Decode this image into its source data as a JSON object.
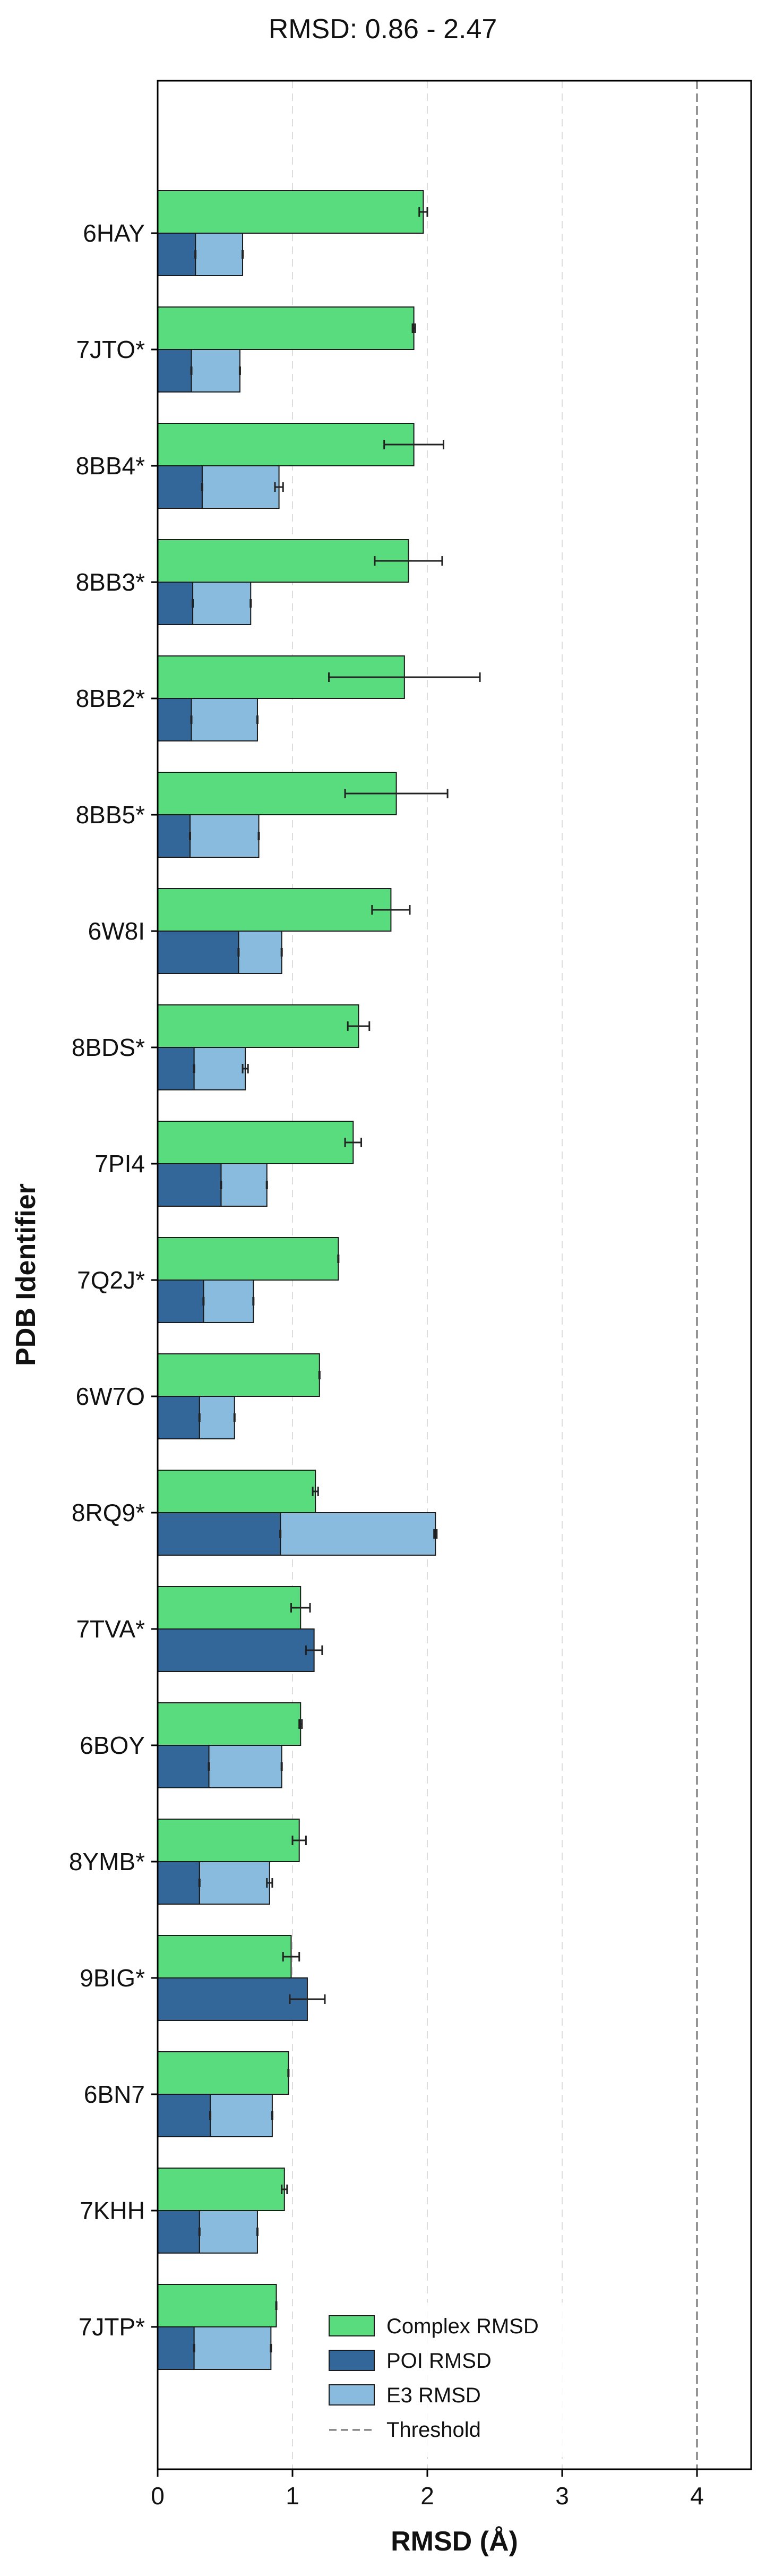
{
  "chart_data": {
    "type": "bar",
    "orientation": "horizontal",
    "title": "RMSD: 0.86 - 2.47",
    "xlabel": "RMSD (Å)",
    "ylabel": "PDB Identifier",
    "xlim": [
      0,
      4.2
    ],
    "xticks": [
      "0",
      "1",
      "2",
      "3",
      "4"
    ],
    "grid": "vertical dashed",
    "legend_position": "bottom-right",
    "threshold": 4.0,
    "categories": [
      "6HAY",
      "7JTO*",
      "8BB4*",
      "8BB3*",
      "8BB2*",
      "8BB5*",
      "6W8I",
      "8BDS*",
      "7PI4",
      "7Q2J*",
      "6W7O",
      "8RQ9*",
      "7TVA*",
      "6BOY",
      "8YMB*",
      "9BIG*",
      "6BN7",
      "7KHH",
      "7JTP*"
    ],
    "series": [
      {
        "name": "Complex RMSD",
        "color": "#58dc7d",
        "values": [
          1.97,
          1.9,
          1.9,
          1.86,
          1.83,
          1.77,
          1.73,
          1.49,
          1.45,
          1.34,
          1.2,
          1.17,
          1.06,
          1.06,
          1.05,
          0.99,
          0.97,
          0.94,
          0.88
        ],
        "errors": [
          0.03,
          0.01,
          0.22,
          0.25,
          0.56,
          0.38,
          0.14,
          0.08,
          0.06,
          0.0,
          0.0,
          0.02,
          0.07,
          0.01,
          0.05,
          0.06,
          0.0,
          0.02,
          0.0
        ]
      },
      {
        "name": "POI RMSD",
        "color": "#336699",
        "values": [
          0.28,
          0.25,
          0.33,
          0.26,
          0.25,
          0.24,
          0.6,
          0.27,
          0.47,
          0.34,
          0.31,
          0.91,
          1.16,
          0.38,
          0.31,
          1.11,
          0.39,
          0.31,
          0.27
        ],
        "errors": [
          0.0,
          0.0,
          0.0,
          0.0,
          0.0,
          0.0,
          0.0,
          0.0,
          0.0,
          0.0,
          0.0,
          0.0,
          0.06,
          0.0,
          0.0,
          0.13,
          0.0,
          0.0,
          0.0
        ]
      },
      {
        "name": "E3 RMSD",
        "color": "#88bbdd",
        "values": [
          0.63,
          0.61,
          0.9,
          0.69,
          0.74,
          0.75,
          0.92,
          0.65,
          0.81,
          0.71,
          0.57,
          2.06,
          0.0,
          0.92,
          0.83,
          0.0,
          0.85,
          0.74,
          0.84
        ],
        "errors": [
          0.0,
          0.0,
          0.03,
          0.0,
          0.0,
          0.0,
          0.0,
          0.02,
          0.0,
          0.0,
          0.0,
          0.01,
          0.0,
          0.0,
          0.02,
          0.0,
          0.0,
          0.0,
          0.0
        ]
      }
    ],
    "threshold_label": "Threshold"
  }
}
